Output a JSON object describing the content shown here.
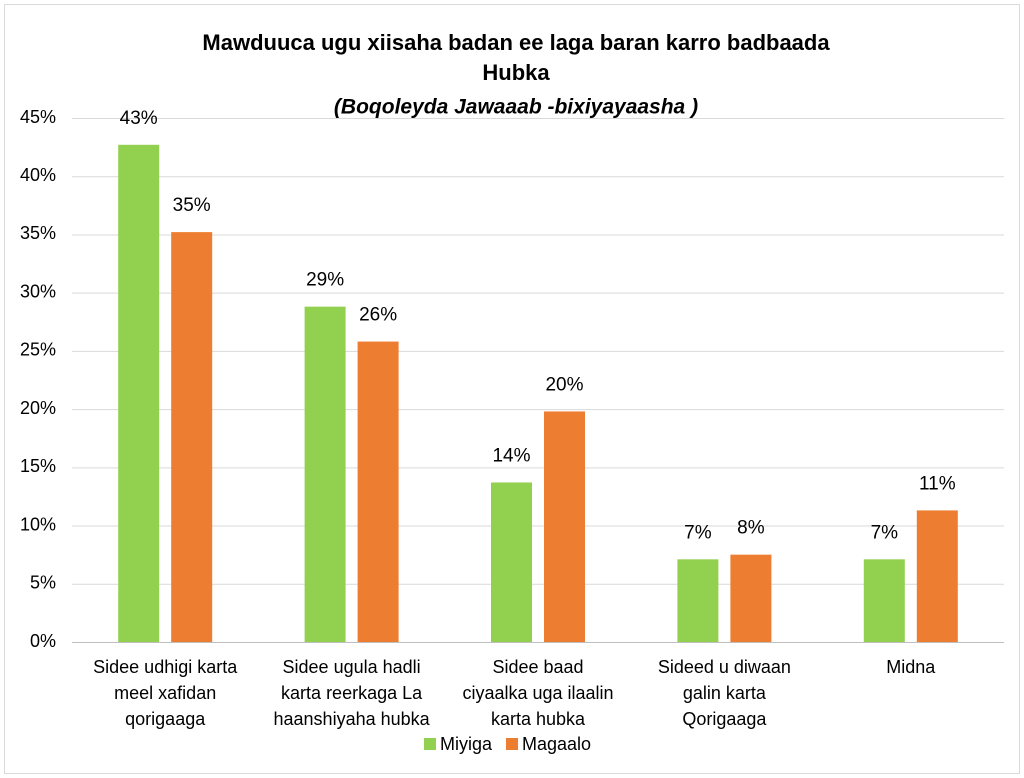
{
  "chart_data": {
    "type": "bar",
    "title": [
      "Mawduuca ugu xiisaha badan  ee laga baran karro badbaada",
      "Hubka"
    ],
    "subtitle": "(Boqoleyda Jawaaab -bixiyayaasha )",
    "categories": [
      [
        "Sidee udhigi karta",
        "meel xafidan",
        "qorigaaga"
      ],
      [
        "Sidee ugula hadli",
        "karta reerkaga La",
        "haanshiyaha hubka"
      ],
      [
        "Sidee baad",
        "ciyaalka uga ilaalin",
        "karta hubka"
      ],
      [
        "Sideed u diwaan",
        "galin karta",
        "Qorigaaga"
      ],
      [
        "Midna"
      ]
    ],
    "series": [
      {
        "name": "Miyiga",
        "color": "#92d050",
        "values": [
          42.7,
          28.8,
          13.7,
          7.1,
          7.1
        ],
        "value_labels": [
          "43%",
          "29%",
          "14%",
          "7%",
          "7%"
        ]
      },
      {
        "name": "Magaalo",
        "color": "#ed7d31",
        "values": [
          35.2,
          25.8,
          19.8,
          7.5,
          11.3
        ],
        "value_labels": [
          "35%",
          "26%",
          "20%",
          "8%",
          "11%"
        ]
      }
    ],
    "ylim": [
      0,
      45
    ],
    "yticks": [
      {
        "value": 0,
        "label": "0%"
      },
      {
        "value": 5,
        "label": "5%"
      },
      {
        "value": 10,
        "label": "10%"
      },
      {
        "value": 15,
        "label": "15%"
      },
      {
        "value": 20,
        "label": "20%"
      },
      {
        "value": 25,
        "label": "25%"
      },
      {
        "value": 30,
        "label": "30%"
      },
      {
        "value": 35,
        "label": "35%"
      },
      {
        "value": 40,
        "label": "40%"
      },
      {
        "value": 45,
        "label": "45%"
      }
    ],
    "grid": true,
    "legend": "bottom"
  }
}
